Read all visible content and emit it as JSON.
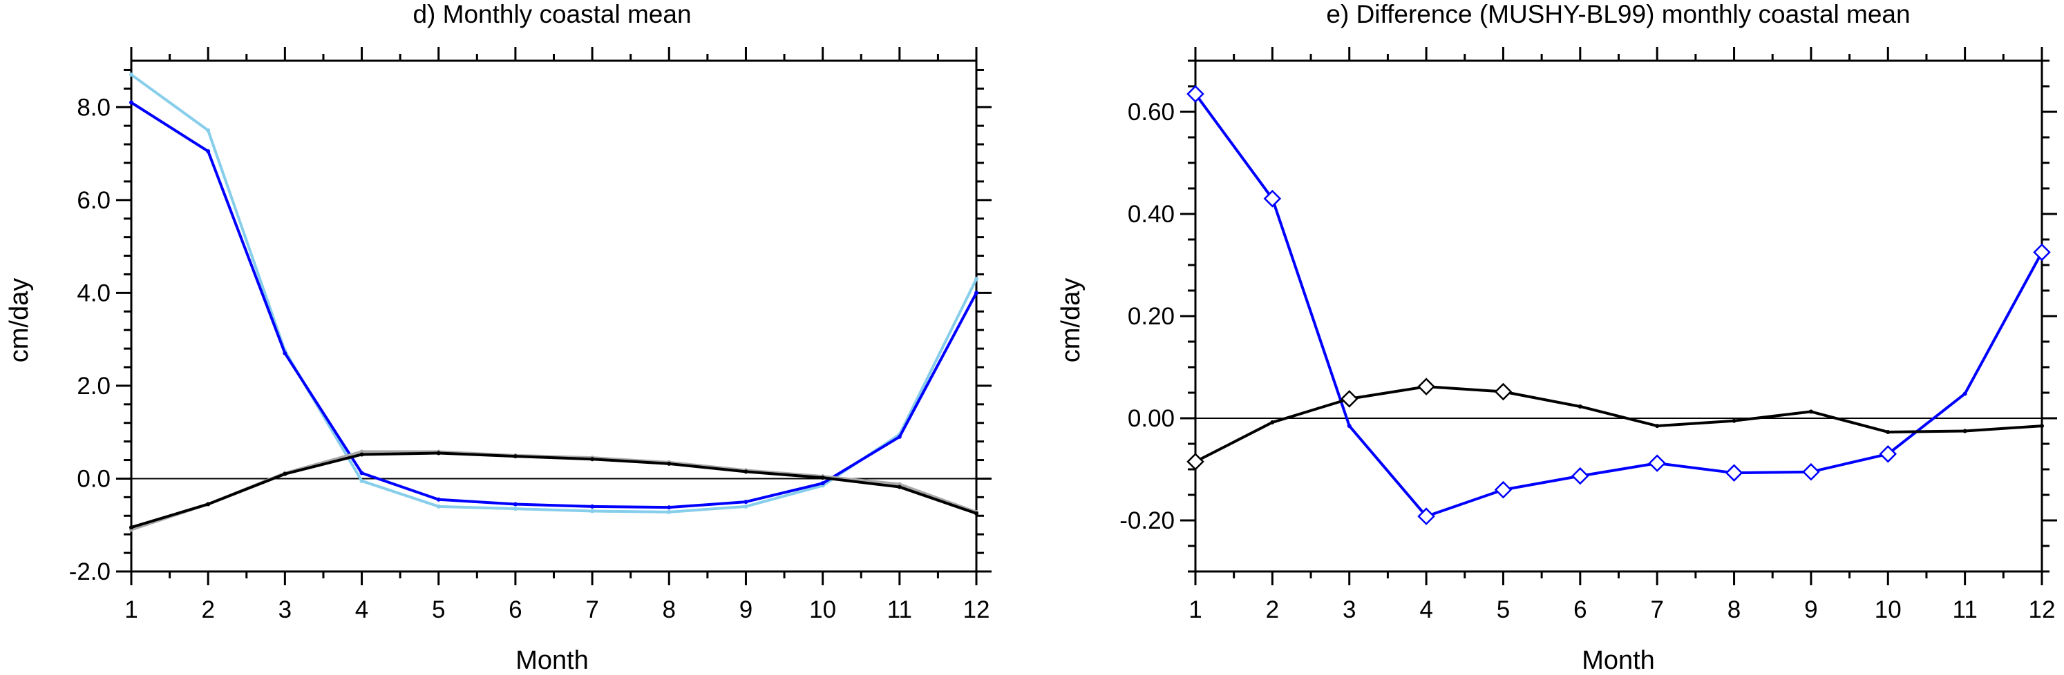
{
  "chart_data": [
    {
      "type": "line",
      "title": "d) Monthly coastal mean",
      "xlabel": "Month",
      "ylabel": "cm/day",
      "x": [
        1,
        2,
        3,
        4,
        5,
        6,
        7,
        8,
        9,
        10,
        11,
        12
      ],
      "xlim": [
        1,
        12
      ],
      "ylim": [
        -2,
        9
      ],
      "xticks": [
        "1",
        "2",
        "3",
        "4",
        "5",
        "6",
        "7",
        "8",
        "9",
        "10",
        "11",
        "12"
      ],
      "yticks": [
        {
          "value": -2,
          "label": "-2.0"
        },
        {
          "value": 0,
          "label": "0.0"
        },
        {
          "value": 2,
          "label": "2.0"
        },
        {
          "value": 4,
          "label": "4.0"
        },
        {
          "value": 6,
          "label": "6.0"
        },
        {
          "value": 8,
          "label": "8.0"
        }
      ],
      "reference_line": 0,
      "grid": false,
      "series": [
        {
          "color": "#87ceeb",
          "marker": "dot",
          "values": [
            8.7,
            7.5,
            2.75,
            -0.05,
            -0.6,
            -0.65,
            -0.7,
            -0.72,
            -0.6,
            -0.15,
            0.95,
            4.3
          ]
        },
        {
          "color": "#0000ff",
          "marker": "dot",
          "values": [
            8.1,
            7.05,
            2.7,
            0.12,
            -0.45,
            -0.55,
            -0.6,
            -0.62,
            -0.5,
            -0.1,
            0.9,
            4.0
          ]
        },
        {
          "color": "#a9a9a9",
          "marker": "dot",
          "values": [
            -1.1,
            -0.55,
            0.12,
            0.58,
            0.58,
            0.5,
            0.45,
            0.35,
            0.18,
            0.05,
            -0.12,
            -0.72
          ]
        },
        {
          "color": "#000000",
          "marker": "dot",
          "values": [
            -1.05,
            -0.55,
            0.1,
            0.52,
            0.55,
            0.48,
            0.42,
            0.32,
            0.15,
            0.02,
            -0.18,
            -0.75
          ]
        }
      ]
    },
    {
      "type": "line",
      "title": "e) Difference (MUSHY-BL99) monthly coastal mean",
      "xlabel": "Month",
      "ylabel": "cm/day",
      "x": [
        1,
        2,
        3,
        4,
        5,
        6,
        7,
        8,
        9,
        10,
        11,
        12
      ],
      "xlim": [
        1,
        12
      ],
      "ylim": [
        -0.3,
        0.7
      ],
      "xticks": [
        "1",
        "2",
        "3",
        "4",
        "5",
        "6",
        "7",
        "8",
        "9",
        "10",
        "11",
        "12"
      ],
      "yticks": [
        {
          "value": -0.2,
          "label": "-0.20"
        },
        {
          "value": 0,
          "label": "0.00"
        },
        {
          "value": 0.2,
          "label": "0.20"
        },
        {
          "value": 0.4,
          "label": "0.40"
        },
        {
          "value": 0.6,
          "label": "0.60"
        }
      ],
      "reference_line": 0,
      "grid": false,
      "series": [
        {
          "color": "#0000ff",
          "values": [
            0.635,
            0.43,
            -0.015,
            -0.192,
            -0.14,
            -0.113,
            -0.088,
            -0.107,
            -0.105,
            -0.07,
            0.048,
            0.325
          ],
          "diamonds": [
            true,
            true,
            false,
            true,
            true,
            true,
            true,
            true,
            true,
            true,
            false,
            true
          ]
        },
        {
          "color": "#000000",
          "values": [
            -0.085,
            -0.008,
            0.038,
            0.062,
            0.052,
            0.023,
            -0.015,
            -0.005,
            0.013,
            -0.027,
            -0.025,
            -0.015
          ],
          "diamonds": [
            true,
            false,
            true,
            true,
            true,
            false,
            false,
            false,
            false,
            false,
            false,
            false
          ]
        }
      ]
    }
  ]
}
